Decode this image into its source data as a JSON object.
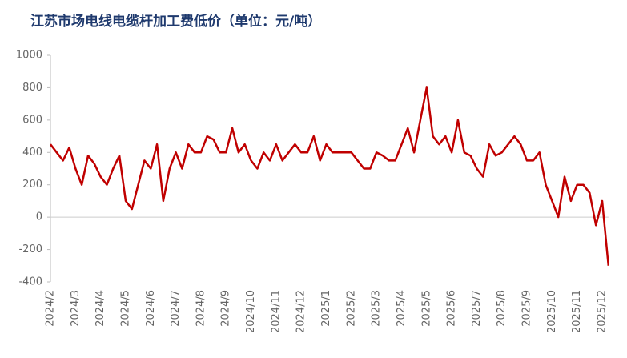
{
  "chart_data": {
    "type": "line",
    "title": "江苏市场电线电缆杆加工费低价（单位：元/吨）",
    "categories": [
      "2024/2",
      null,
      null,
      null,
      "2024/3",
      null,
      null,
      null,
      "2024/4",
      null,
      null,
      null,
      "2024/5",
      null,
      null,
      null,
      "2024/6",
      null,
      null,
      null,
      "2024/7",
      null,
      null,
      null,
      "2024/8",
      null,
      null,
      null,
      "2024/9",
      null,
      null,
      null,
      "2024/10",
      null,
      null,
      null,
      "2024/11",
      null,
      null,
      null,
      "2024/12",
      null,
      null,
      null,
      "2025/1",
      null,
      null,
      null,
      "2025/2",
      null,
      null,
      null,
      "2025/3",
      null,
      null,
      null,
      "2025/4",
      null,
      null,
      null,
      "2025/5",
      null,
      null,
      null,
      "2025/6",
      null,
      null,
      null,
      "2025/7",
      null,
      null,
      null,
      "2025/8",
      null,
      null,
      null,
      "2025/9",
      null,
      null,
      null,
      "2025/10",
      null,
      null,
      null,
      "2025/11",
      null,
      null,
      null,
      "2025/12",
      null
    ],
    "values": [
      450,
      400,
      350,
      430,
      300,
      200,
      380,
      330,
      250,
      200,
      300,
      380,
      100,
      50,
      200,
      350,
      300,
      450,
      100,
      300,
      400,
      300,
      450,
      400,
      400,
      500,
      480,
      400,
      400,
      550,
      400,
      450,
      350,
      300,
      400,
      350,
      450,
      350,
      400,
      450,
      400,
      400,
      500,
      350,
      450,
      400,
      400,
      400,
      400,
      350,
      300,
      300,
      400,
      380,
      350,
      350,
      450,
      550,
      400,
      600,
      800,
      500,
      450,
      500,
      400,
      600,
      400,
      380,
      300,
      250,
      450,
      380,
      400,
      450,
      500,
      450,
      350,
      350,
      400,
      200,
      100,
      0,
      250,
      100,
      200,
      200,
      150,
      -50,
      100,
      -300
    ],
    "color": "#c00000",
    "ylim": [
      -400,
      1000
    ],
    "yticks": [
      -400,
      -200,
      0,
      200,
      400,
      600,
      800,
      1000
    ]
  }
}
